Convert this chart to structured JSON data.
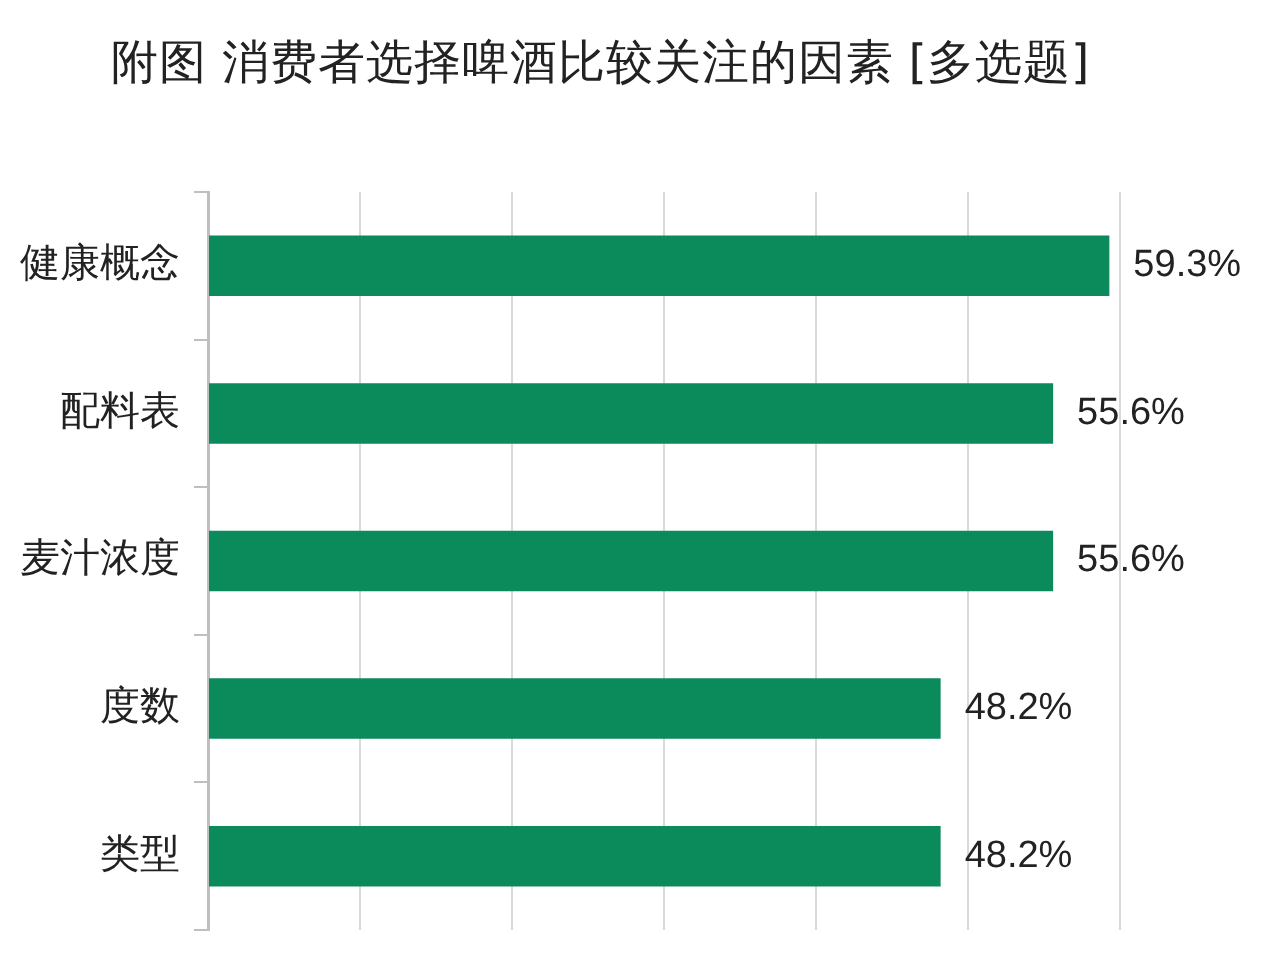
{
  "chart_data": {
    "type": "bar",
    "orientation": "horizontal",
    "title": "附图 消费者选择啤酒比较关注的因素 [多选题]",
    "categories": [
      "健康概念",
      "配料表",
      "麦汁浓度",
      "度数",
      "类型"
    ],
    "values": [
      59.3,
      55.6,
      55.6,
      48.2,
      48.2
    ],
    "color": "#0b8a5c",
    "value_labels": [
      "59.3%",
      "55.6%",
      "55.6%",
      "48.2%",
      "48.2%"
    ],
    "xlim": [
      0,
      60
    ],
    "xticks": [
      {
        "value": 0,
        "label": null
      },
      {
        "value": 10,
        "label": null
      },
      {
        "value": 20,
        "label": null
      },
      {
        "value": 30,
        "label": null
      },
      {
        "value": 40,
        "label": null
      },
      {
        "value": 50,
        "label": null
      },
      {
        "value": 60,
        "label": null
      }
    ],
    "grid": "x",
    "tick_labels": "y"
  }
}
